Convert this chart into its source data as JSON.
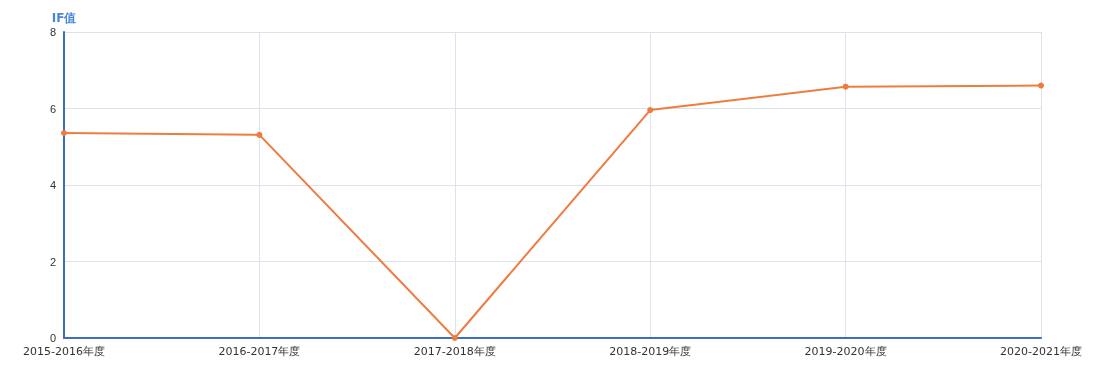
{
  "chart_data": {
    "type": "line",
    "ylabel": "IF值",
    "categories": [
      "2015-2016年度",
      "2016-2017年度",
      "2017-2018年度",
      "2018-2019年度",
      "2019-2020年度",
      "2020-2021年度"
    ],
    "series": [
      {
        "color": "#f07b3f",
        "values": [
          5.36,
          5.31,
          0,
          5.96,
          6.57,
          6.6
        ]
      }
    ],
    "ylim": [
      0,
      8
    ],
    "yticks": [
      0,
      2,
      4,
      6,
      8
    ],
    "grid": true,
    "marker": "circle",
    "line_style": "solid"
  }
}
